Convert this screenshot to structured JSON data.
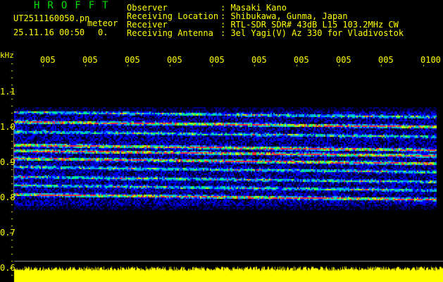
{
  "app_title": "HROFFT",
  "file_name": "UT2511160050.pn",
  "mode_label": "meteor",
  "datetime": "25.11.16 00:50",
  "count_value": "0.",
  "info": [
    {
      "label": "Observer",
      "value": ": Masaki Kano"
    },
    {
      "label": "Receiving Location",
      "value": ": Shibukawa, Gunma, Japan"
    },
    {
      "label": "Receiver",
      "value": ": RTL-SDR SDR# 43dB L15 103.2MHz CW"
    },
    {
      "label": "Receiving Antenna",
      "value": ": 3el Yagi(V) Az 330 for Vladivostok"
    }
  ],
  "y_unit": "kHz",
  "y_ticks": [
    "1.1",
    "1.0",
    "0.9",
    "0.8",
    "0.7",
    "0.6"
  ],
  "time_labels": [
    "005",
    "005",
    "005",
    "005",
    "005",
    "005",
    "005",
    "005",
    "005",
    "0100"
  ],
  "colors": {
    "text": "#ffff00",
    "title": "#00e000",
    "background": "#000000",
    "signal_bar": "#ffff00"
  }
}
